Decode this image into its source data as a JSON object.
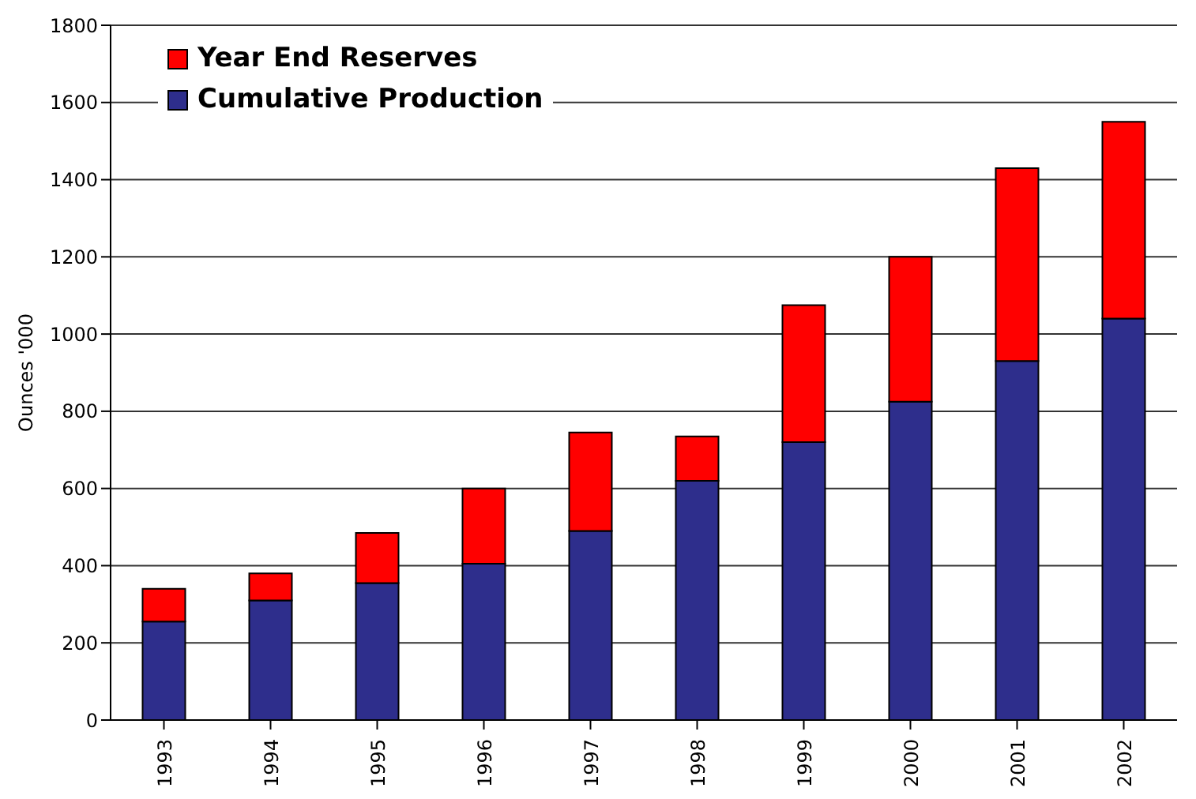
{
  "chart_data": {
    "type": "bar",
    "stacked": true,
    "ylabel": "Ounces '000",
    "categories": [
      "1993",
      "1994",
      "1995",
      "1996",
      "1997",
      "1998",
      "1999",
      "2000",
      "2001",
      "2002"
    ],
    "series": [
      {
        "name": "Cumulative Production",
        "color": "#2e2e8c",
        "values": [
          255,
          310,
          355,
          405,
          490,
          620,
          720,
          825,
          930,
          1040
        ]
      },
      {
        "name": "Year End Reserves",
        "color": "#ff0000",
        "values": [
          85,
          70,
          130,
          195,
          255,
          115,
          355,
          375,
          500,
          510
        ]
      }
    ],
    "ylim": [
      0,
      1800
    ],
    "yticks": [
      0,
      200,
      400,
      600,
      800,
      1000,
      1200,
      1400,
      1600,
      1800
    ],
    "grid": "y",
    "legend": "top left"
  }
}
